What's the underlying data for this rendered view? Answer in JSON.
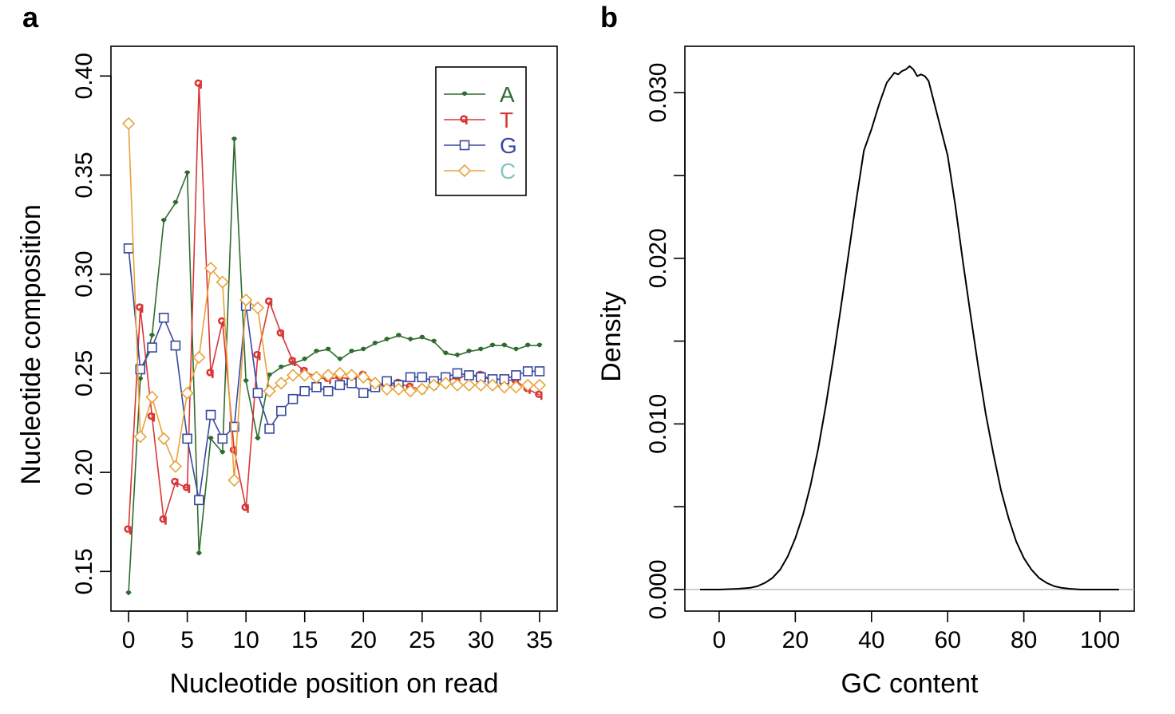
{
  "panel_labels": {
    "a": "a",
    "b": "b"
  },
  "chart_data": [
    {
      "type": "line",
      "panel": "a",
      "title": "",
      "xlabel": "Nucleotide position on read",
      "ylabel": "Nucleotide composition",
      "xlim": [
        -1.5,
        36.5
      ],
      "ylim": [
        0.13,
        0.415
      ],
      "x_ticks": [
        0,
        5,
        10,
        15,
        20,
        25,
        30,
        35
      ],
      "y_ticks": [
        0.15,
        0.2,
        0.25,
        0.3,
        0.35,
        0.4
      ],
      "y_tick_labels": [
        "0.15",
        "0.20",
        "0.25",
        "0.30",
        "0.35",
        "0.40"
      ],
      "grid": false,
      "legend_position": "top-right",
      "x": [
        0,
        1,
        2,
        3,
        4,
        5,
        6,
        7,
        8,
        9,
        10,
        11,
        12,
        13,
        14,
        15,
        16,
        17,
        18,
        19,
        20,
        21,
        22,
        23,
        24,
        25,
        26,
        27,
        28,
        29,
        30,
        31,
        32,
        33,
        34,
        35
      ],
      "series": [
        {
          "name": "A",
          "color": "#2e6b2e",
          "label_color": "#2e6b2e",
          "marker": "half-circle",
          "values": [
            0.139,
            0.247,
            0.269,
            0.327,
            0.336,
            0.351,
            0.159,
            0.217,
            0.21,
            0.368,
            0.246,
            0.217,
            0.249,
            0.253,
            0.255,
            0.257,
            0.261,
            0.262,
            0.257,
            0.261,
            0.262,
            0.265,
            0.267,
            0.269,
            0.267,
            0.268,
            0.266,
            0.26,
            0.259,
            0.261,
            0.262,
            0.264,
            0.264,
            0.262,
            0.264,
            0.264
          ]
        },
        {
          "name": "T",
          "color": "#d93636",
          "label_color": "#d93636",
          "marker": "q",
          "values": [
            0.171,
            0.283,
            0.228,
            0.176,
            0.195,
            0.192,
            0.396,
            0.25,
            0.276,
            0.211,
            0.182,
            0.259,
            0.286,
            0.27,
            0.256,
            0.251,
            0.248,
            0.247,
            0.248,
            0.247,
            0.249,
            0.245,
            0.243,
            0.245,
            0.243,
            0.242,
            0.244,
            0.246,
            0.248,
            0.249,
            0.249,
            0.247,
            0.247,
            0.246,
            0.242,
            0.239
          ]
        },
        {
          "name": "G",
          "color": "#3848a0",
          "label_color": "#3848a0",
          "marker": "square",
          "values": [
            0.313,
            0.252,
            0.263,
            0.278,
            0.264,
            0.217,
            0.186,
            0.229,
            0.217,
            0.223,
            0.284,
            0.24,
            0.222,
            0.231,
            0.237,
            0.241,
            0.243,
            0.241,
            0.244,
            0.245,
            0.24,
            0.243,
            0.246,
            0.244,
            0.248,
            0.248,
            0.246,
            0.248,
            0.25,
            0.249,
            0.248,
            0.247,
            0.247,
            0.249,
            0.251,
            0.251
          ]
        },
        {
          "name": "C",
          "color": "#e8a33a",
          "label_color": "#88c7c2",
          "marker": "diamond",
          "values": [
            0.376,
            0.218,
            0.238,
            0.217,
            0.203,
            0.24,
            0.258,
            0.303,
            0.296,
            0.196,
            0.287,
            0.283,
            0.241,
            0.245,
            0.249,
            0.249,
            0.248,
            0.249,
            0.25,
            0.249,
            0.248,
            0.245,
            0.242,
            0.242,
            0.241,
            0.242,
            0.244,
            0.245,
            0.244,
            0.244,
            0.244,
            0.244,
            0.243,
            0.243,
            0.244,
            0.244
          ]
        }
      ]
    },
    {
      "type": "line",
      "panel": "b",
      "title": "",
      "xlabel": "GC content",
      "ylabel": "Density",
      "xlim": [
        -9,
        109
      ],
      "ylim": [
        -0.0013,
        0.0328
      ],
      "x_ticks": [
        0,
        20,
        40,
        60,
        80,
        100
      ],
      "y_ticks": [
        0.0,
        0.01,
        0.02,
        0.03
      ],
      "y_tick_labels": [
        "0.000",
        "0.010",
        "0.020",
        "0.030"
      ],
      "y_minor_ticks": [
        0.005,
        0.015,
        0.025
      ],
      "grid": false,
      "baseline": 0,
      "line_color": "#000000",
      "series": [
        {
          "name": "",
          "x": [
            -5,
            0,
            5,
            8,
            10,
            12,
            14,
            16,
            18,
            20,
            22,
            24,
            26,
            28,
            30,
            32,
            34,
            36,
            38,
            40,
            42,
            44,
            45,
            46,
            47,
            48,
            49,
            50,
            51,
            52,
            53,
            54,
            55,
            56,
            58,
            60,
            62,
            64,
            66,
            68,
            70,
            72,
            74,
            76,
            78,
            80,
            82,
            84,
            86,
            88,
            90,
            92,
            95,
            100,
            105
          ],
          "values": [
            0.0,
            0.0,
            5e-05,
            0.0001,
            0.0002,
            0.0004,
            0.0007,
            0.0012,
            0.002,
            0.0031,
            0.0045,
            0.0063,
            0.0085,
            0.0111,
            0.014,
            0.0171,
            0.0203,
            0.0235,
            0.0265,
            0.0278,
            0.0293,
            0.0306,
            0.0309,
            0.0312,
            0.0311,
            0.0313,
            0.0314,
            0.0316,
            0.0314,
            0.031,
            0.0311,
            0.031,
            0.0307,
            0.0298,
            0.028,
            0.0262,
            0.0232,
            0.0198,
            0.0166,
            0.0135,
            0.0106,
            0.0082,
            0.006,
            0.0043,
            0.0029,
            0.0019,
            0.0012,
            0.0007,
            0.0004,
            0.0002,
            0.0001,
            5e-05,
            0.0,
            0.0,
            0.0
          ]
        }
      ]
    }
  ]
}
